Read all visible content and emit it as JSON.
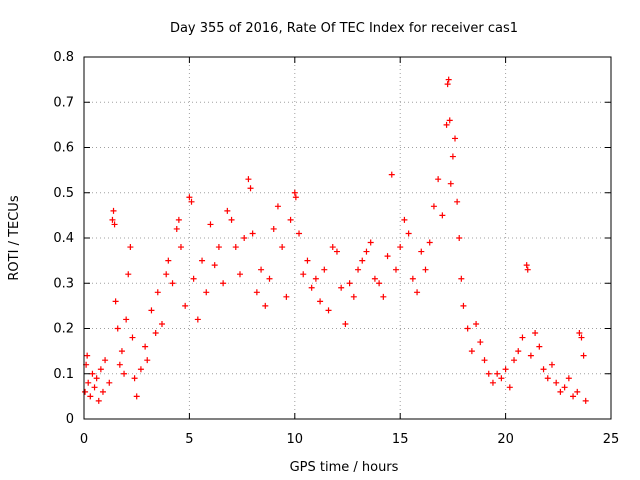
{
  "chart_data": {
    "type": "scatter",
    "title": "Day 355 of 2016, Rate Of TEC Index for receiver cas1",
    "xlabel": "GPS time / hours",
    "ylabel": "ROTI / TECUs",
    "xlim": [
      0,
      25
    ],
    "ylim": [
      0,
      0.8
    ],
    "xticks": [
      "0",
      "5",
      "10",
      "15",
      "20",
      "25"
    ],
    "yticks": [
      "0",
      "0.1",
      "0.2",
      "0.3",
      "0.4",
      "0.5",
      "0.6",
      "0.7",
      "0.8"
    ],
    "grid": true,
    "marker": "+",
    "series": [
      {
        "color": "#ff0000",
        "points": [
          [
            0.05,
            0.06
          ],
          [
            0.1,
            0.12
          ],
          [
            0.15,
            0.14
          ],
          [
            0.2,
            0.08
          ],
          [
            0.3,
            0.05
          ],
          [
            0.4,
            0.1
          ],
          [
            0.5,
            0.07
          ],
          [
            0.6,
            0.09
          ],
          [
            0.7,
            0.04
          ],
          [
            0.8,
            0.11
          ],
          [
            0.9,
            0.06
          ],
          [
            1.0,
            0.13
          ],
          [
            1.2,
            0.08
          ],
          [
            1.35,
            0.44
          ],
          [
            1.4,
            0.46
          ],
          [
            1.45,
            0.43
          ],
          [
            1.5,
            0.26
          ],
          [
            1.6,
            0.2
          ],
          [
            1.7,
            0.12
          ],
          [
            1.8,
            0.15
          ],
          [
            1.9,
            0.1
          ],
          [
            2.0,
            0.22
          ],
          [
            2.1,
            0.32
          ],
          [
            2.2,
            0.38
          ],
          [
            2.3,
            0.18
          ],
          [
            2.4,
            0.09
          ],
          [
            2.5,
            0.05
          ],
          [
            2.7,
            0.11
          ],
          [
            2.9,
            0.16
          ],
          [
            3.0,
            0.13
          ],
          [
            3.2,
            0.24
          ],
          [
            3.4,
            0.19
          ],
          [
            3.5,
            0.28
          ],
          [
            3.7,
            0.21
          ],
          [
            3.9,
            0.32
          ],
          [
            4.0,
            0.35
          ],
          [
            4.2,
            0.3
          ],
          [
            4.4,
            0.42
          ],
          [
            4.5,
            0.44
          ],
          [
            4.6,
            0.38
          ],
          [
            4.8,
            0.25
          ],
          [
            5.0,
            0.49
          ],
          [
            5.1,
            0.48
          ],
          [
            5.2,
            0.31
          ],
          [
            5.4,
            0.22
          ],
          [
            5.6,
            0.35
          ],
          [
            5.8,
            0.28
          ],
          [
            6.0,
            0.43
          ],
          [
            6.2,
            0.34
          ],
          [
            6.4,
            0.38
          ],
          [
            6.6,
            0.3
          ],
          [
            6.8,
            0.46
          ],
          [
            7.0,
            0.44
          ],
          [
            7.2,
            0.38
          ],
          [
            7.4,
            0.32
          ],
          [
            7.6,
            0.4
          ],
          [
            7.8,
            0.53
          ],
          [
            7.9,
            0.51
          ],
          [
            8.0,
            0.41
          ],
          [
            8.2,
            0.28
          ],
          [
            8.4,
            0.33
          ],
          [
            8.6,
            0.25
          ],
          [
            8.8,
            0.31
          ],
          [
            9.0,
            0.42
          ],
          [
            9.2,
            0.47
          ],
          [
            9.4,
            0.38
          ],
          [
            9.6,
            0.27
          ],
          [
            9.8,
            0.44
          ],
          [
            10.0,
            0.5
          ],
          [
            10.05,
            0.49
          ],
          [
            10.2,
            0.41
          ],
          [
            10.4,
            0.32
          ],
          [
            10.6,
            0.35
          ],
          [
            10.8,
            0.29
          ],
          [
            11.0,
            0.31
          ],
          [
            11.2,
            0.26
          ],
          [
            11.4,
            0.33
          ],
          [
            11.6,
            0.24
          ],
          [
            11.8,
            0.38
          ],
          [
            12.0,
            0.37
          ],
          [
            12.2,
            0.29
          ],
          [
            12.4,
            0.21
          ],
          [
            12.6,
            0.3
          ],
          [
            12.8,
            0.27
          ],
          [
            13.0,
            0.33
          ],
          [
            13.2,
            0.35
          ],
          [
            13.4,
            0.37
          ],
          [
            13.6,
            0.39
          ],
          [
            13.8,
            0.31
          ],
          [
            14.0,
            0.3
          ],
          [
            14.2,
            0.27
          ],
          [
            14.4,
            0.36
          ],
          [
            14.6,
            0.54
          ],
          [
            14.8,
            0.33
          ],
          [
            15.0,
            0.38
          ],
          [
            15.2,
            0.44
          ],
          [
            15.4,
            0.41
          ],
          [
            15.6,
            0.31
          ],
          [
            15.8,
            0.28
          ],
          [
            16.0,
            0.37
          ],
          [
            16.2,
            0.33
          ],
          [
            16.4,
            0.39
          ],
          [
            16.6,
            0.47
          ],
          [
            16.8,
            0.53
          ],
          [
            17.0,
            0.45
          ],
          [
            17.2,
            0.65
          ],
          [
            17.25,
            0.74
          ],
          [
            17.3,
            0.75
          ],
          [
            17.35,
            0.66
          ],
          [
            17.4,
            0.52
          ],
          [
            17.5,
            0.58
          ],
          [
            17.6,
            0.62
          ],
          [
            17.7,
            0.48
          ],
          [
            17.8,
            0.4
          ],
          [
            17.9,
            0.31
          ],
          [
            18.0,
            0.25
          ],
          [
            18.2,
            0.2
          ],
          [
            18.4,
            0.15
          ],
          [
            18.6,
            0.21
          ],
          [
            18.8,
            0.17
          ],
          [
            19.0,
            0.13
          ],
          [
            19.2,
            0.1
          ],
          [
            19.4,
            0.08
          ],
          [
            19.6,
            0.1
          ],
          [
            19.8,
            0.09
          ],
          [
            20.0,
            0.11
          ],
          [
            20.2,
            0.07
          ],
          [
            20.4,
            0.13
          ],
          [
            20.6,
            0.15
          ],
          [
            20.8,
            0.18
          ],
          [
            21.0,
            0.34
          ],
          [
            21.05,
            0.33
          ],
          [
            21.2,
            0.14
          ],
          [
            21.4,
            0.19
          ],
          [
            21.6,
            0.16
          ],
          [
            21.8,
            0.11
          ],
          [
            22.0,
            0.09
          ],
          [
            22.2,
            0.12
          ],
          [
            22.4,
            0.08
          ],
          [
            22.6,
            0.06
          ],
          [
            22.8,
            0.07
          ],
          [
            23.0,
            0.09
          ],
          [
            23.2,
            0.05
          ],
          [
            23.4,
            0.06
          ],
          [
            23.5,
            0.19
          ],
          [
            23.6,
            0.18
          ],
          [
            23.7,
            0.14
          ],
          [
            23.8,
            0.04
          ]
        ]
      }
    ]
  }
}
